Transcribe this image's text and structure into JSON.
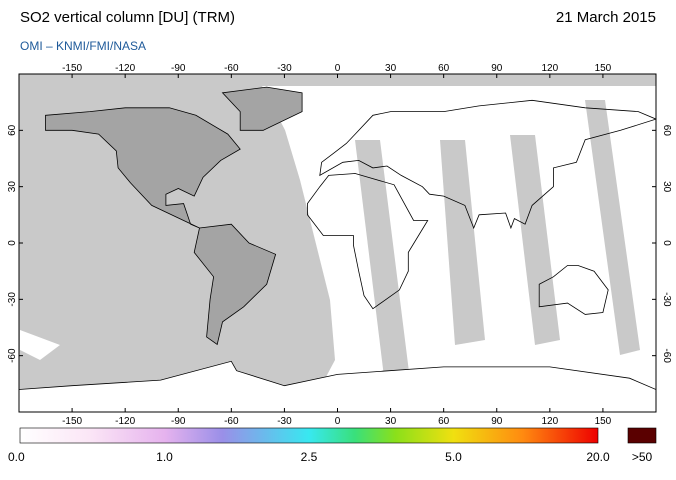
{
  "header": {
    "title": "SO2 vertical column [DU] (TRM)",
    "date": "21 March 2015",
    "credit": "OMI  –  KNMI/FMI/NASA"
  },
  "map": {
    "lon_ticks": [
      -150,
      -120,
      -90,
      -60,
      -30,
      0,
      30,
      60,
      90,
      120,
      150
    ],
    "lat_ticks": [
      -60,
      -30,
      0,
      30,
      60
    ]
  },
  "colorbar": {
    "labels": [
      "0.0",
      "1.0",
      "2.5",
      "5.0",
      "20.0"
    ],
    "overflow_label": ">50"
  }
}
